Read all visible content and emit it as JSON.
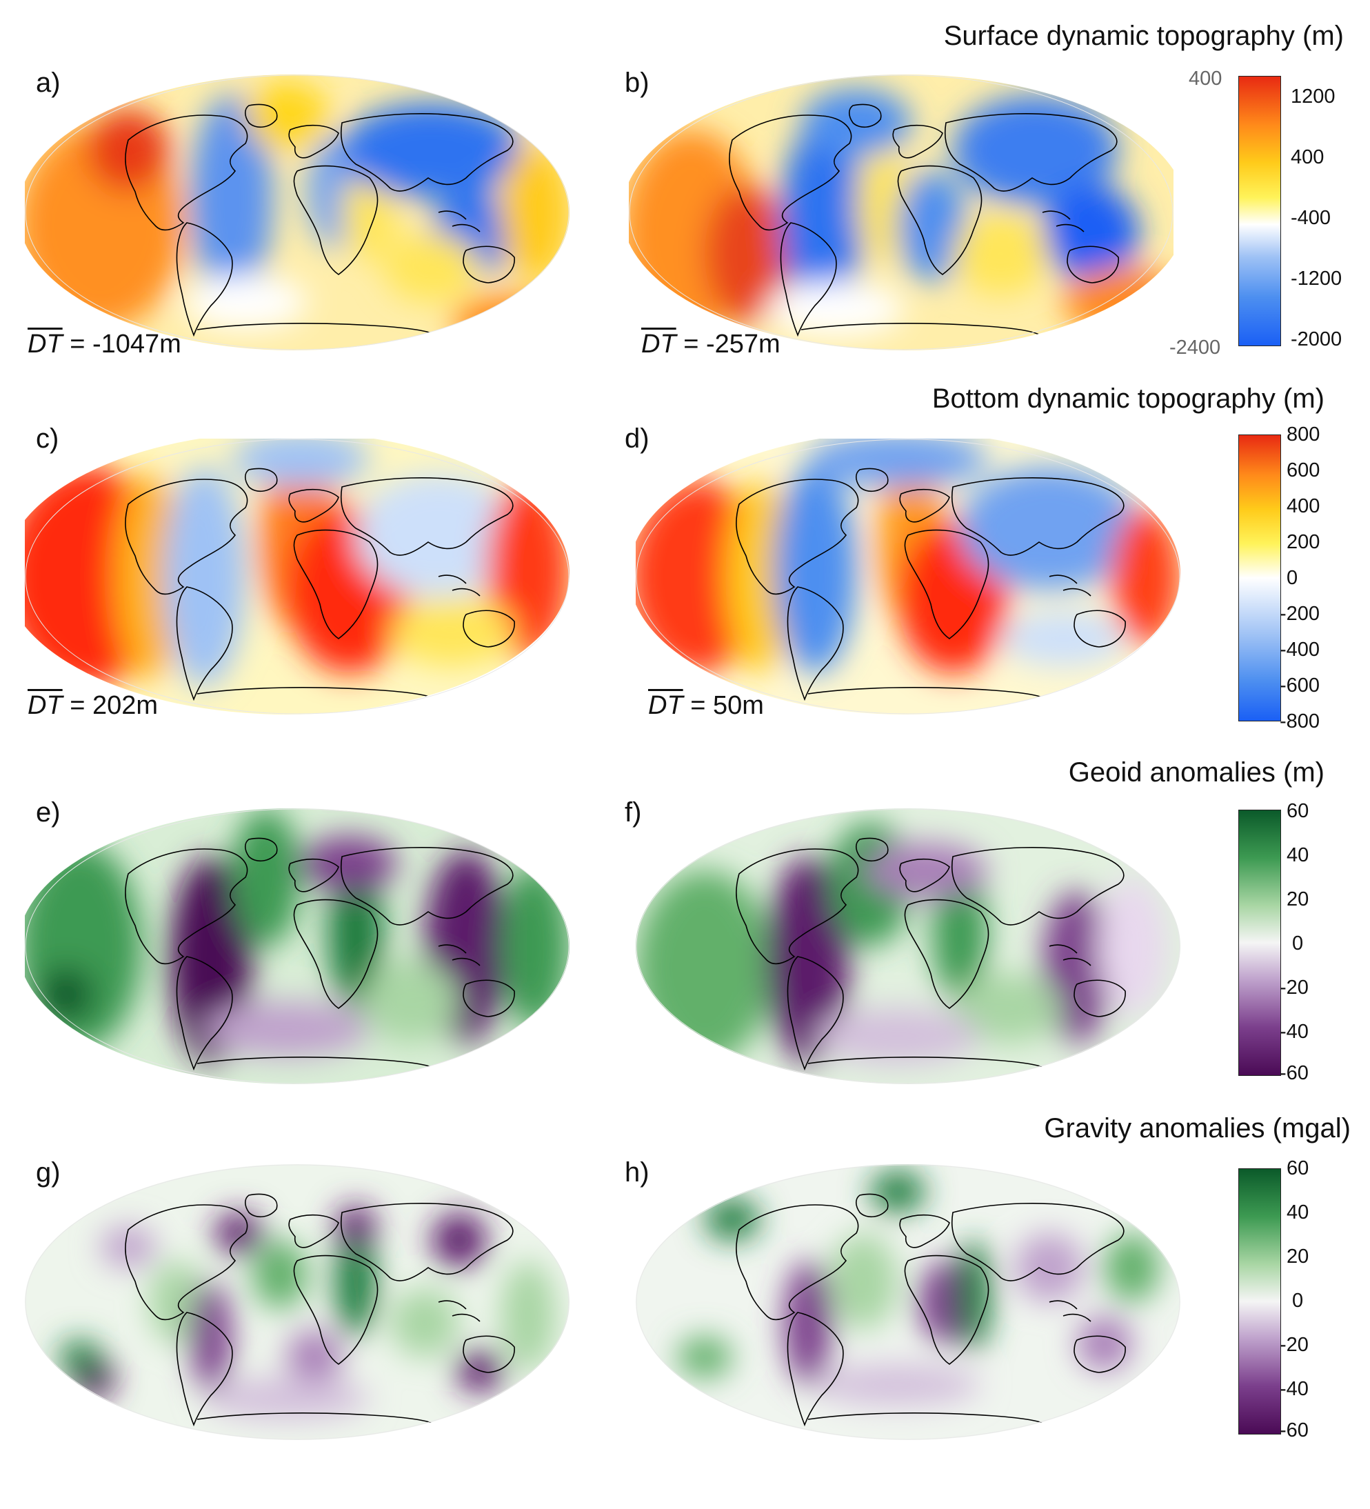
{
  "rows": [
    {
      "title": "Surface dynamic topography (m)",
      "panels": [
        {
          "label": "a)",
          "dt": "= -1047m"
        },
        {
          "label": "b)",
          "dt": "= -257m"
        }
      ],
      "colorbar": {
        "ticks": [
          "1200",
          "400",
          "-400",
          "-1200",
          "-2000"
        ],
        "extra_ticks": [
          "400",
          "-2400"
        ],
        "colors": [
          "#1a5ff5",
          "#4d8ff0",
          "#9fc2f5",
          "#ffffff",
          "#fff35a",
          "#ffcb1a",
          "#ff8a1a",
          "#e82a12"
        ]
      }
    },
    {
      "title": "Bottom dynamic topography (m)",
      "panels": [
        {
          "label": "c)",
          "dt": "= 202m"
        },
        {
          "label": "d)",
          "dt": "= 50m"
        }
      ],
      "colorbar": {
        "ticks": [
          "800",
          "600",
          "400",
          "200",
          "0",
          "-200",
          "-400",
          "-600",
          "-800"
        ],
        "colors": [
          "#1a5ff5",
          "#4d8ff0",
          "#9fc2f5",
          "#ffffff",
          "#fff35a",
          "#ffcb1a",
          "#ff8a1a",
          "#e82a12"
        ]
      }
    },
    {
      "title": "Geoid anomalies (m)",
      "panels": [
        {
          "label": "e)"
        },
        {
          "label": "f)"
        }
      ],
      "colorbar": {
        "ticks": [
          "60",
          "40",
          "20",
          "0",
          "-20",
          "-40",
          "-60"
        ],
        "colors": [
          "#4a0a55",
          "#7b3f8c",
          "#bfa2cc",
          "#f5f5f5",
          "#a9d6a4",
          "#3d9a52",
          "#0b5a2a"
        ]
      }
    },
    {
      "title": "Gravity anomalies (mgal)",
      "panels": [
        {
          "label": "g)"
        },
        {
          "label": "h)"
        }
      ],
      "colorbar": {
        "ticks": [
          "60",
          "40",
          "20",
          "0",
          "-20",
          "-40",
          "-60"
        ],
        "colors": [
          "#4a0a55",
          "#7b3f8c",
          "#bfa2cc",
          "#f5f5f5",
          "#a9d6a4",
          "#3d9a52",
          "#0b5a2a"
        ]
      }
    }
  ],
  "dt_symbol": "DT"
}
